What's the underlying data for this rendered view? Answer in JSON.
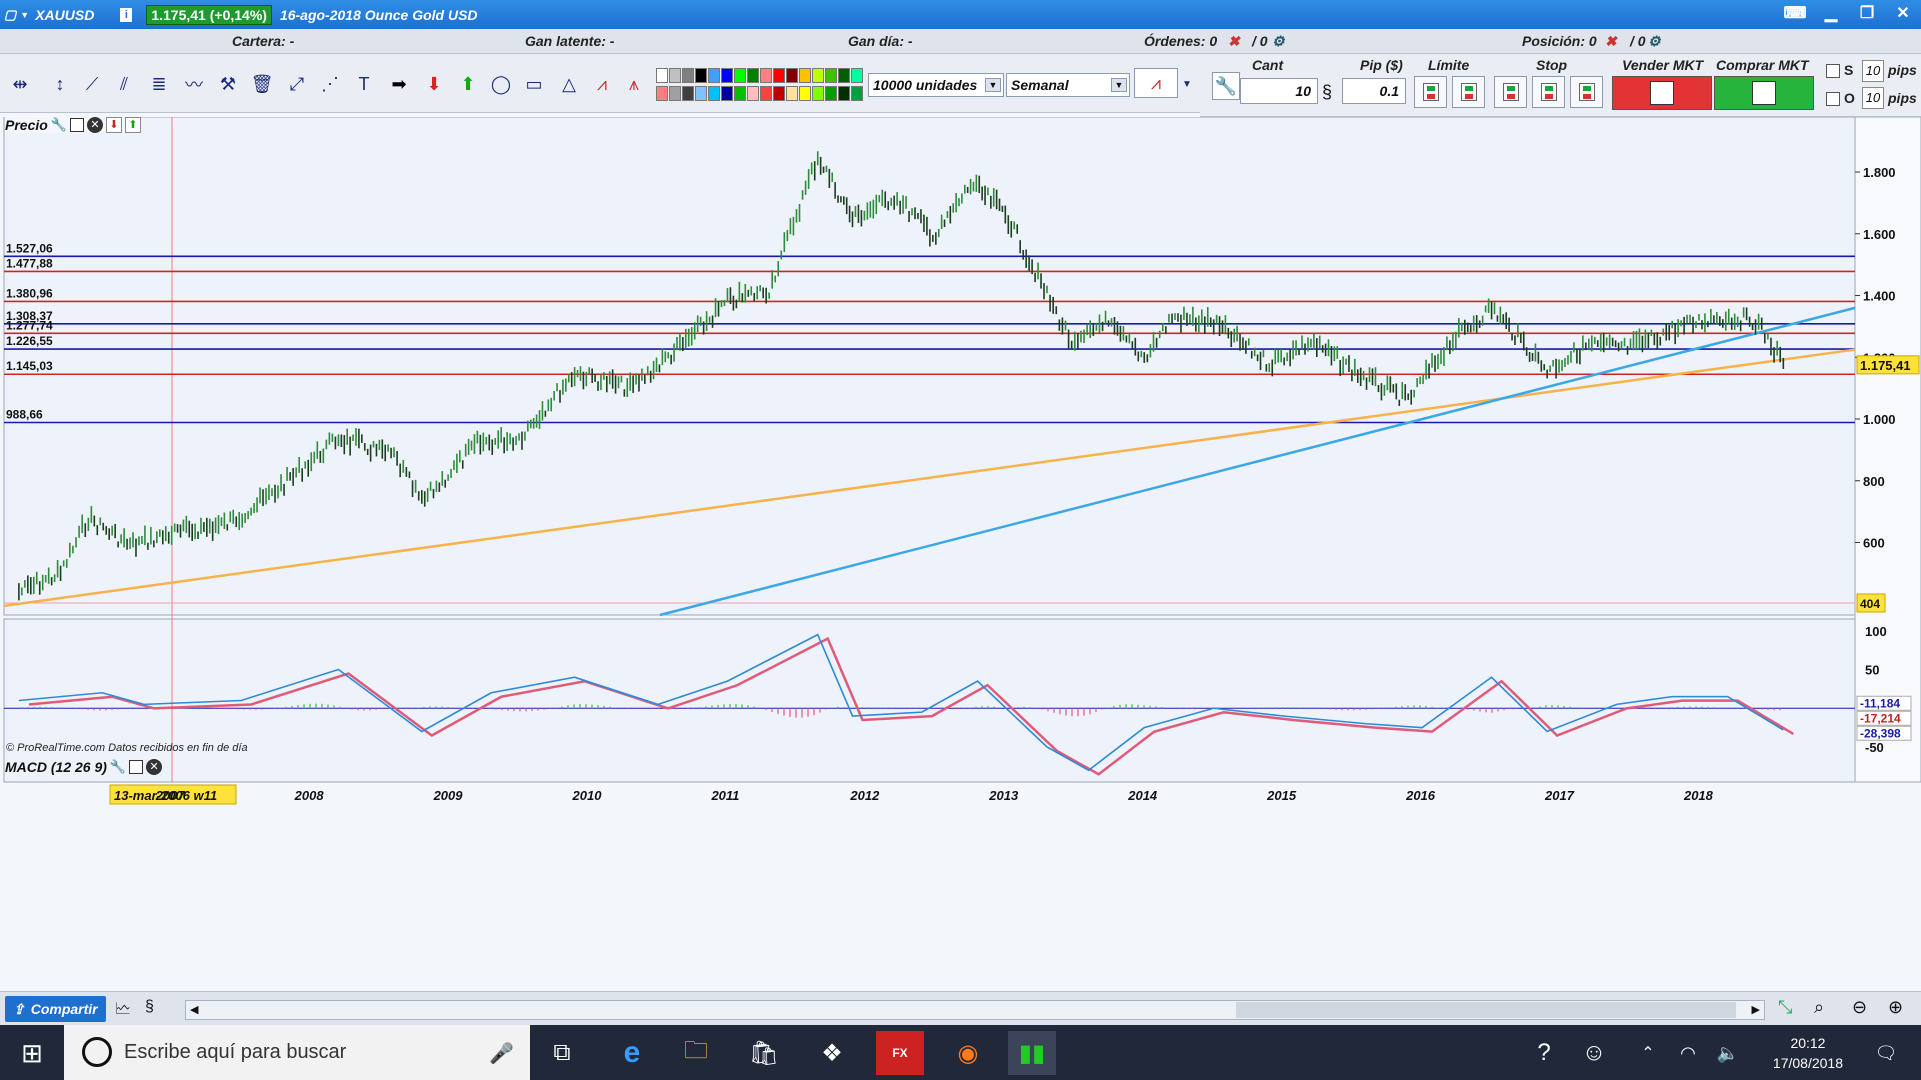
{
  "window": {
    "symbol": "XAUUSD",
    "price_badge": "1.175,41 (+0,14%)",
    "description": "16-ago-2018 Ounce Gold USD"
  },
  "infobar": {
    "cartera": "Cartera: -",
    "gan_latente": "Gan latente: -",
    "gan_dia": "Gan día: -",
    "ordenes": "Órdenes: 0",
    "ordenes_b": "/ 0",
    "posicion": "Posición: 0",
    "posicion_b": "/ 0"
  },
  "toolbar": {
    "units": "10000 unidades",
    "timeframe": "Semanal",
    "swatches": [
      "#ffffff",
      "#ff7f7f",
      "#c0c0c0",
      "#a0a0a0",
      "#808080",
      "#404040",
      "#000000",
      "#7fc4ff",
      "#3fa0ff",
      "#00c0ff",
      "#0000ff",
      "#0000a0",
      "#00ff00",
      "#00c000",
      "#008000",
      "#ffbfbf",
      "#ff8080",
      "#ff4040",
      "#ff0000",
      "#c00000",
      "#800000",
      "#ffe0a0",
      "#ffc000",
      "#ffff00",
      "#c0ff00",
      "#80ff00",
      "#40c000",
      "#00a000",
      "#006000",
      "#003000",
      "#00ffa0",
      "#00a040"
    ]
  },
  "order_panel": {
    "cant_label": "Cant",
    "cant_value": "10",
    "pip_label": "Pip ($)",
    "pip_value": "0.1",
    "limite_label": "Límite",
    "stop_label": "Stop",
    "vender_label": "Vender MKT",
    "comprar_label": "Comprar MKT",
    "s_label": "S",
    "o_label": "O",
    "s_value": "10",
    "o_value": "10",
    "pips_label": "pips"
  },
  "price_panel": {
    "title": "Precio",
    "credit": "© ProRealTime.com  Datos recibidos en fin de día",
    "current_price": "1.175,41",
    "low_marker": "404",
    "axis_ticks": [
      "1.800",
      "1.600",
      "1.400",
      "1.200",
      "1.000",
      "800",
      "600"
    ],
    "levels": [
      {
        "label": "1.527,06",
        "value": 1527.06,
        "color": "#1a1aaa"
      },
      {
        "label": "1.477,88",
        "value": 1477.88,
        "color": "#d92020"
      },
      {
        "label": "1.380,96",
        "value": 1380.96,
        "color": "#d92020"
      },
      {
        "label": "1.308,37",
        "value": 1308.37,
        "color": "#1a1aaa"
      },
      {
        "label": "1.277,74",
        "value": 1277.74,
        "color": "#d92020"
      },
      {
        "label": "1.226,55",
        "value": 1226.55,
        "color": "#1a1aaa"
      },
      {
        "label": "1.145,03",
        "value": 1145.03,
        "color": "#d92020"
      },
      {
        "label": "988,66",
        "value": 988.66,
        "color": "#1a1aaa"
      }
    ]
  },
  "macd_panel": {
    "title": "MACD (12 26 9)",
    "axis_ticks": [
      "100",
      "50",
      "-50"
    ],
    "readouts": [
      "-11,184",
      "-17,214",
      "-28,398"
    ]
  },
  "time_axis": {
    "cursor_label": "13-mar-2006 w11",
    "years": [
      "2007",
      "2008",
      "2009",
      "2010",
      "2011",
      "2012",
      "2013",
      "2014",
      "2015",
      "2016",
      "2017",
      "2018"
    ]
  },
  "statusbar": {
    "share_label": "Compartir"
  },
  "taskbar": {
    "search_placeholder": "Escribe aquí para buscar",
    "time": "20:12",
    "date": "17/08/2018"
  },
  "chart_data": {
    "type": "line",
    "title": "XAUUSD",
    "series": [
      {
        "name": "XAUUSD",
        "x": [
          2005.9,
          2006.2,
          2006.4,
          2006.7,
          2007.0,
          2007.4,
          2007.7,
          2008.2,
          2008.6,
          2008.8,
          2009.2,
          2009.5,
          2009.9,
          2010.3,
          2010.7,
          2011.0,
          2011.3,
          2011.65,
          2011.9,
          2012.2,
          2012.5,
          2012.75,
          2013.0,
          2013.3,
          2013.5,
          2013.7,
          2014.0,
          2014.2,
          2014.5,
          2014.9,
          2015.2,
          2015.6,
          2015.9,
          2016.2,
          2016.5,
          2016.9,
          2017.2,
          2017.5,
          2017.8,
          2018.1,
          2018.4,
          2018.6
        ],
        "values": [
          440,
          500,
          680,
          590,
          630,
          660,
          750,
          940,
          880,
          730,
          920,
          940,
          1150,
          1100,
          1250,
          1380,
          1420,
          1850,
          1650,
          1720,
          1590,
          1760,
          1670,
          1400,
          1230,
          1320,
          1200,
          1330,
          1310,
          1180,
          1250,
          1130,
          1060,
          1250,
          1360,
          1160,
          1240,
          1230,
          1290,
          1330,
          1320,
          1180
        ]
      },
      {
        "name": "MACD",
        "x": [
          2005.9,
          2006.5,
          2006.8,
          2007.5,
          2008.2,
          2008.8,
          2009.3,
          2009.9,
          2010.5,
          2011.0,
          2011.65,
          2011.9,
          2012.4,
          2012.8,
          2013.3,
          2013.6,
          2014.0,
          2014.5,
          2015.0,
          2015.6,
          2016.0,
          2016.5,
          2016.9,
          2017.4,
          2017.8,
          2018.2,
          2018.6
        ],
        "values": [
          10,
          20,
          5,
          10,
          50,
          -30,
          20,
          40,
          5,
          35,
          95,
          -10,
          -5,
          35,
          -50,
          -80,
          -25,
          0,
          -10,
          -20,
          -25,
          40,
          -30,
          5,
          15,
          15,
          -28
        ]
      }
    ],
    "ylim": [
      404,
      1920
    ],
    "trendlines": [
      "orange support",
      "blue support"
    ]
  }
}
